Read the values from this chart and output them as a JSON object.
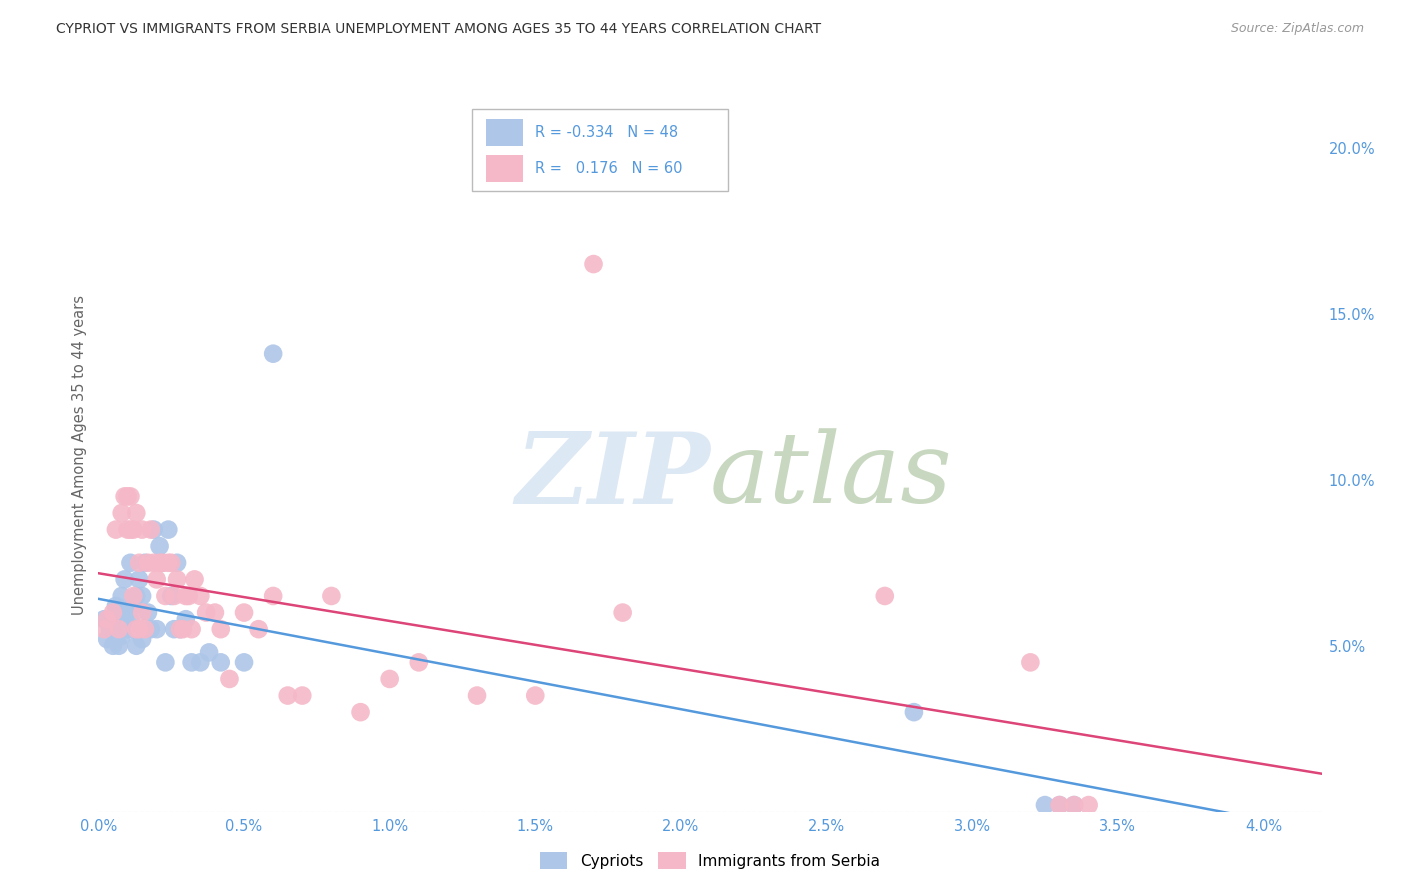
{
  "title": "CYPRIOT VS IMMIGRANTS FROM SERBIA UNEMPLOYMENT AMONG AGES 35 TO 44 YEARS CORRELATION CHART",
  "source": "Source: ZipAtlas.com",
  "ylabel": "Unemployment Among Ages 35 to 44 years",
  "x_ticklabels": [
    "0.0%",
    "0.5%",
    "1.0%",
    "1.5%",
    "2.0%",
    "2.5%",
    "3.0%",
    "3.5%",
    "4.0%"
  ],
  "x_ticks": [
    0.0,
    0.5,
    1.0,
    1.5,
    2.0,
    2.5,
    3.0,
    3.5,
    4.0
  ],
  "y_ticklabels": [
    "5.0%",
    "10.0%",
    "15.0%",
    "20.0%"
  ],
  "y_ticks": [
    5.0,
    10.0,
    15.0,
    20.0
  ],
  "xlim": [
    0.0,
    4.2
  ],
  "ylim": [
    0.0,
    21.5
  ],
  "cypriot_R": -0.334,
  "cypriot_N": 48,
  "serbia_R": 0.176,
  "serbia_N": 60,
  "cypriot_color": "#aec6e8",
  "serbia_color": "#f5b8c8",
  "cypriot_line_color": "#5599dd",
  "serbia_line_color": "#dd4477",
  "background_color": "#ffffff",
  "grid_color": "#cccccc",
  "watermark_color": "#dde8f5",
  "tick_color": "#5599dd",
  "title_color": "#333333",
  "source_color": "#999999",
  "ylabel_color": "#666666",
  "cypriot_x": [
    0.02,
    0.03,
    0.04,
    0.05,
    0.06,
    0.06,
    0.07,
    0.07,
    0.08,
    0.08,
    0.09,
    0.09,
    0.1,
    0.1,
    0.11,
    0.11,
    0.12,
    0.12,
    0.13,
    0.13,
    0.14,
    0.14,
    0.15,
    0.15,
    0.16,
    0.17,
    0.18,
    0.19,
    0.2,
    0.21,
    0.22,
    0.23,
    0.24,
    0.25,
    0.26,
    0.27,
    0.28,
    0.3,
    0.32,
    0.35,
    0.38,
    0.42,
    0.5,
    0.6,
    2.8,
    3.25,
    3.3,
    3.35
  ],
  "cypriot_y": [
    5.8,
    5.2,
    5.5,
    5.0,
    6.2,
    5.5,
    6.0,
    5.0,
    5.3,
    6.5,
    5.8,
    7.0,
    5.5,
    6.0,
    5.8,
    7.5,
    5.5,
    6.2,
    5.0,
    6.5,
    5.5,
    7.0,
    6.5,
    5.2,
    7.5,
    6.0,
    5.5,
    8.5,
    5.5,
    8.0,
    7.5,
    4.5,
    8.5,
    6.5,
    5.5,
    7.5,
    5.5,
    5.8,
    4.5,
    4.5,
    4.8,
    4.5,
    4.5,
    13.8,
    3.0,
    0.2,
    0.2,
    0.2
  ],
  "serbia_x": [
    0.02,
    0.03,
    0.05,
    0.06,
    0.07,
    0.08,
    0.09,
    0.1,
    0.1,
    0.11,
    0.11,
    0.12,
    0.12,
    0.13,
    0.13,
    0.14,
    0.14,
    0.15,
    0.15,
    0.16,
    0.17,
    0.18,
    0.19,
    0.2,
    0.21,
    0.22,
    0.23,
    0.24,
    0.25,
    0.26,
    0.27,
    0.28,
    0.29,
    0.3,
    0.31,
    0.32,
    0.33,
    0.35,
    0.37,
    0.4,
    0.42,
    0.45,
    0.5,
    0.55,
    0.6,
    0.65,
    0.7,
    0.8,
    0.9,
    1.0,
    1.1,
    1.3,
    1.5,
    1.7,
    1.8,
    2.7,
    3.2,
    3.3,
    3.35,
    3.4
  ],
  "serbia_y": [
    5.5,
    5.8,
    6.0,
    8.5,
    5.5,
    9.0,
    9.5,
    8.5,
    9.5,
    8.5,
    9.5,
    8.5,
    6.5,
    9.0,
    5.5,
    7.5,
    5.5,
    8.5,
    6.0,
    5.5,
    7.5,
    8.5,
    7.5,
    7.0,
    7.5,
    7.5,
    6.5,
    7.5,
    7.5,
    6.5,
    7.0,
    5.5,
    5.5,
    6.5,
    6.5,
    5.5,
    7.0,
    6.5,
    6.0,
    6.0,
    5.5,
    4.0,
    6.0,
    5.5,
    6.5,
    3.5,
    3.5,
    6.5,
    3.0,
    4.0,
    4.5,
    3.5,
    3.5,
    16.5,
    6.0,
    6.5,
    4.5,
    0.2,
    0.2,
    0.2
  ]
}
